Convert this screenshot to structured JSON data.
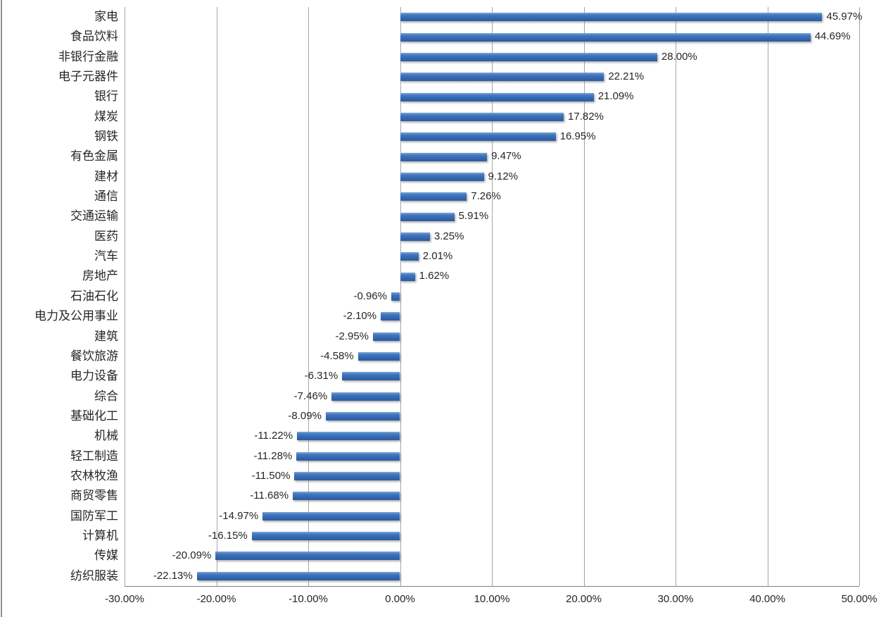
{
  "chart_data": {
    "type": "bar",
    "orientation": "horizontal",
    "title": "",
    "categories": [
      "家电",
      "食品饮料",
      "非银行金融",
      "电子元器件",
      "银行",
      "煤炭",
      "钢铁",
      "有色金属",
      "建材",
      "通信",
      "交通运输",
      "医药",
      "汽车",
      "房地产",
      "石油石化",
      "电力及公用事业",
      "建筑",
      "餐饮旅游",
      "电力设备",
      "综合",
      "基础化工",
      "机械",
      "轻工制造",
      "农林牧渔",
      "商贸零售",
      "国防军工",
      "计算机",
      "传媒",
      "纺织服装"
    ],
    "values": [
      45.97,
      44.69,
      28.0,
      22.21,
      21.09,
      17.82,
      16.95,
      9.47,
      9.12,
      7.26,
      5.91,
      3.25,
      2.01,
      1.62,
      -0.96,
      -2.1,
      -2.95,
      -4.58,
      -6.31,
      -7.46,
      -8.09,
      -11.22,
      -11.28,
      -11.5,
      -11.68,
      -14.97,
      -16.15,
      -20.09,
      -22.13
    ],
    "value_labels": [
      "45.97%",
      "44.69%",
      "28.00%",
      "22.21%",
      "21.09%",
      "17.82%",
      "16.95%",
      "9.47%",
      "9.12%",
      "7.26%",
      "5.91%",
      "3.25%",
      "2.01%",
      "1.62%",
      "-0.96%",
      "-2.10%",
      "-2.95%",
      "-4.58%",
      "-6.31%",
      "-7.46%",
      "-8.09%",
      "-11.22%",
      "-11.28%",
      "-11.50%",
      "-11.68%",
      "-14.97%",
      "-16.15%",
      "-20.09%",
      "-22.13%"
    ],
    "x_ticks": [
      {
        "value": -30,
        "label": "-30.00%"
      },
      {
        "value": -20,
        "label": "-20.00%"
      },
      {
        "value": -10,
        "label": "-10.00%"
      },
      {
        "value": 0,
        "label": "0.00%"
      },
      {
        "value": 10,
        "label": "10.00%"
      },
      {
        "value": 20,
        "label": "20.00%"
      },
      {
        "value": 30,
        "label": "30.00%"
      },
      {
        "value": 40,
        "label": "40.00%"
      },
      {
        "value": 50,
        "label": "50.00%"
      }
    ],
    "xlim": [
      -30,
      50
    ],
    "grid": true,
    "legend": "none",
    "xlabel": "",
    "ylabel": "",
    "bar_color": "#3A6EB5",
    "gridline_color": "#A6A6A6",
    "axis_line_color": "#808080",
    "text_color": "#262626",
    "background": "#FFFFFF"
  }
}
